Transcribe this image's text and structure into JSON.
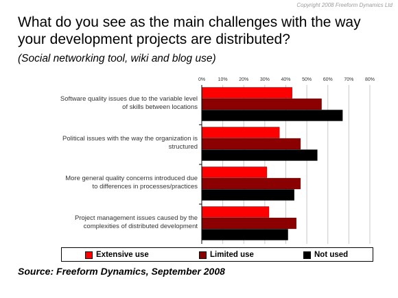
{
  "copyright": "Copyright 2008 Freeform Dynamics Ltd",
  "title": "What do you see as the main challenges with the way your development projects are distributed?",
  "subtitle": "(Social networking tool, wiki and blog use)",
  "source": "Source: Freeform Dynamics, September 2008",
  "chart_data": {
    "type": "bar",
    "orientation": "horizontal",
    "categories": [
      [
        "Software quality issues due to the variable level",
        "of skills between locations"
      ],
      [
        "Political issues with the way the organization is",
        "structured"
      ],
      [
        "More general quality concerns introduced due",
        "to differences in processes/practices"
      ],
      [
        "Project management issues caused by the",
        "complexities of distributed development"
      ]
    ],
    "series": [
      {
        "name": "Extensive use",
        "color": "#ff0000",
        "values": [
          43,
          37,
          31,
          32
        ]
      },
      {
        "name": "Limited use",
        "color": "#8b0000",
        "values": [
          57,
          47,
          47,
          45
        ]
      },
      {
        "name": "Not used",
        "color": "#000000",
        "values": [
          67,
          55,
          44,
          41
        ]
      }
    ],
    "xlim": [
      0,
      80
    ],
    "xticks": [
      "0%",
      "10%",
      "20%",
      "30%",
      "40%",
      "50%",
      "60%",
      "70%",
      "80%"
    ],
    "grid": true,
    "legend_position": "bottom"
  }
}
